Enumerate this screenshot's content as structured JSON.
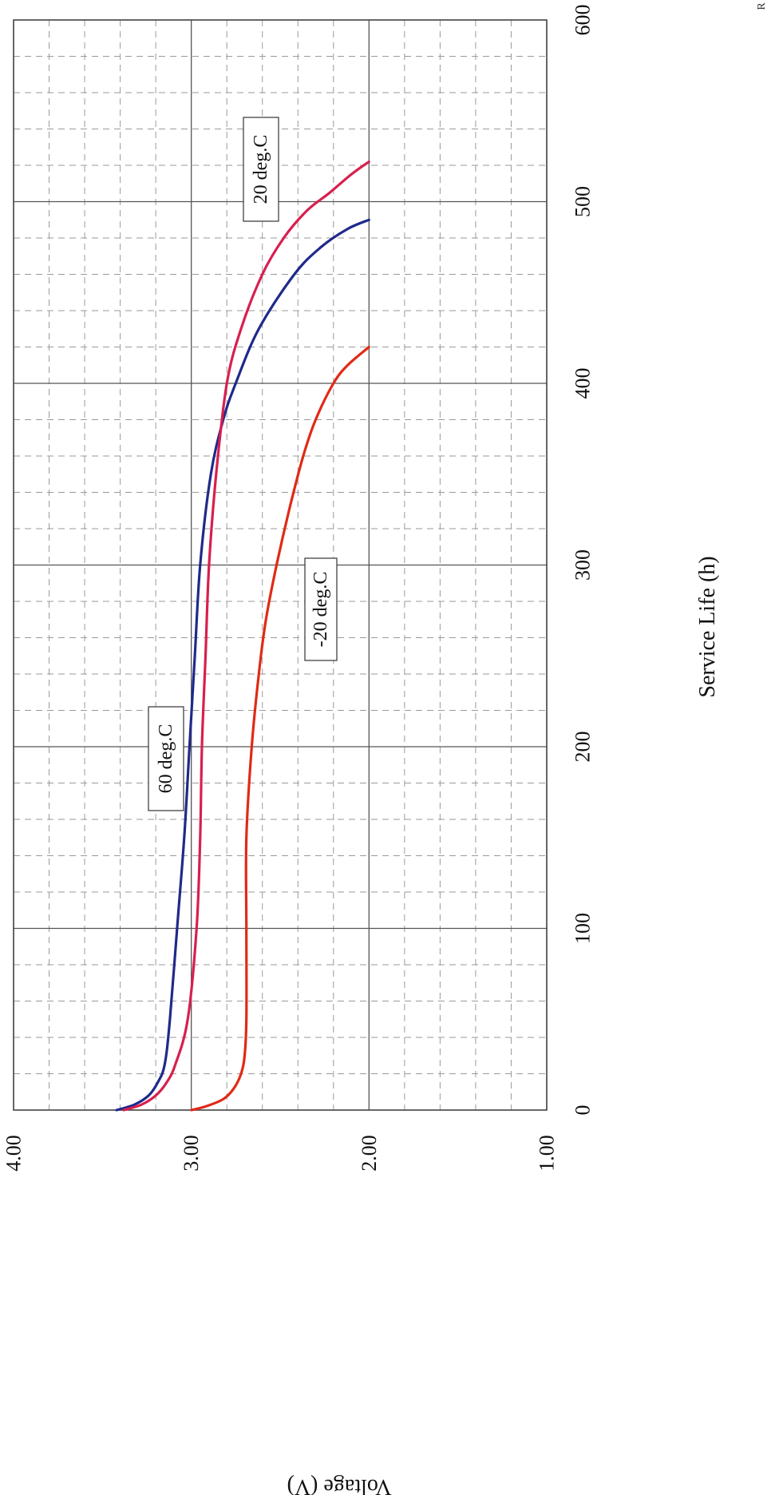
{
  "chart_data": {
    "type": "line",
    "orientation": "rotated-90-clockwise",
    "title": "",
    "xlabel": "Service Life (h)",
    "ylabel": "Voltage (V)",
    "xlim": [
      0,
      600
    ],
    "ylim": [
      1.0,
      4.0
    ],
    "x_ticks": [
      "0",
      "100",
      "200",
      "300",
      "400",
      "500",
      "600"
    ],
    "y_ticks": [
      "1.00",
      "2.00",
      "3.00",
      "4.00"
    ],
    "x_tick_values": [
      0,
      100,
      200,
      300,
      400,
      500,
      600
    ],
    "y_tick_values": [
      1.0,
      2.0,
      3.0,
      4.0
    ],
    "grid": true,
    "corner_text": "R",
    "series": [
      {
        "name": "60 deg.C",
        "color": "#1f2a8a",
        "x": [
          0,
          3,
          8,
          15,
          25,
          50,
          100,
          150,
          200,
          250,
          300,
          350,
          380,
          400,
          430,
          460,
          475,
          485,
          490
        ],
        "y": [
          3.42,
          3.32,
          3.24,
          3.19,
          3.15,
          3.12,
          3.08,
          3.04,
          3.01,
          2.98,
          2.95,
          2.89,
          2.82,
          2.75,
          2.62,
          2.42,
          2.27,
          2.12,
          2.0
        ]
      },
      {
        "name": "20 deg.C",
        "color": "#d81f4e",
        "x": [
          0,
          3,
          8,
          15,
          25,
          50,
          100,
          150,
          200,
          250,
          300,
          350,
          400,
          430,
          460,
          480,
          495,
          505,
          515,
          522
        ],
        "y": [
          3.38,
          3.28,
          3.2,
          3.14,
          3.09,
          3.02,
          2.97,
          2.95,
          2.94,
          2.92,
          2.9,
          2.86,
          2.8,
          2.72,
          2.6,
          2.48,
          2.35,
          2.22,
          2.1,
          2.0
        ]
      },
      {
        "name": "-20 deg.C",
        "color": "#e02a16",
        "x": [
          0,
          2,
          6,
          12,
          20,
          30,
          50,
          100,
          150,
          200,
          240,
          270,
          300,
          330,
          360,
          380,
          400,
          410,
          420
        ],
        "y": [
          3.0,
          2.92,
          2.82,
          2.76,
          2.72,
          2.7,
          2.69,
          2.69,
          2.69,
          2.66,
          2.62,
          2.58,
          2.52,
          2.45,
          2.37,
          2.3,
          2.2,
          2.12,
          2.0
        ]
      }
    ],
    "annotations": [
      {
        "text": "60 deg.C",
        "series": 0
      },
      {
        "text": "20 deg.C",
        "series": 1
      },
      {
        "text": "-20 deg.C",
        "series": 2
      }
    ]
  }
}
